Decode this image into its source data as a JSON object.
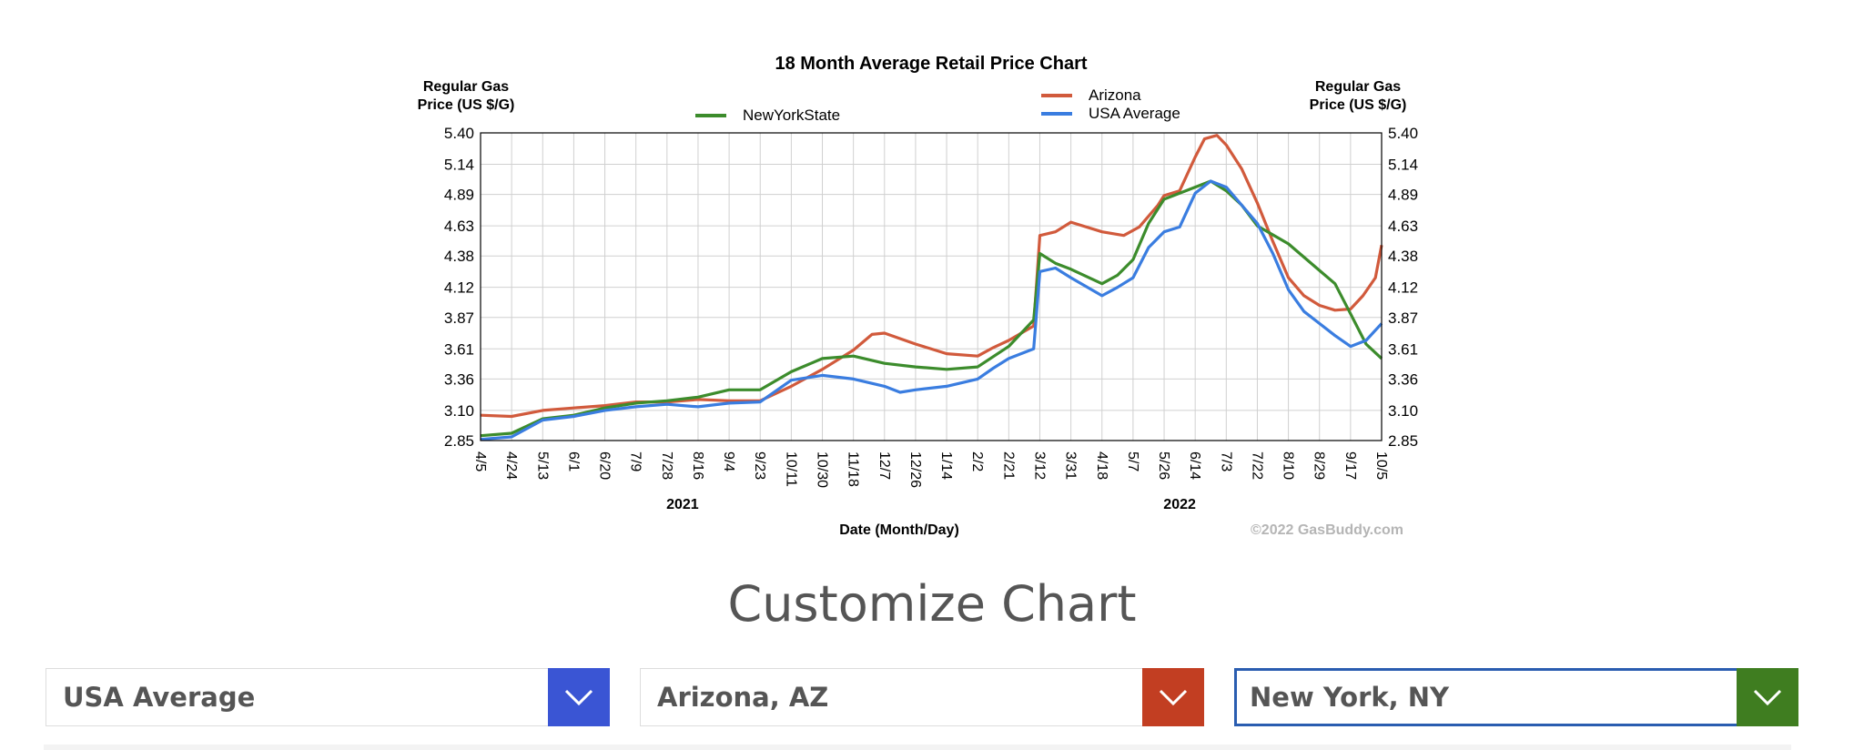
{
  "chart_data": {
    "type": "line",
    "title": "18 Month Average Retail Price Chart",
    "ylabel_left": "Regular Gas Price (US $/G)",
    "ylabel_right": "Regular Gas Price (US $/G)",
    "xlabel": "Date (Month/Day)",
    "credit": "©2022 GasBuddy.com",
    "ylim": [
      2.85,
      5.4
    ],
    "yticks": [
      "2.85",
      "3.10",
      "3.36",
      "3.61",
      "3.87",
      "4.12",
      "4.38",
      "4.63",
      "4.89",
      "5.14",
      "5.40"
    ],
    "x_ticks": [
      "4/5",
      "4/24",
      "5/13",
      "6/1",
      "6/20",
      "7/9",
      "7/28",
      "8/16",
      "9/4",
      "9/23",
      "10/11",
      "10/30",
      "11/18",
      "12/7",
      "12/26",
      "1/14",
      "2/2",
      "2/21",
      "3/12",
      "3/31",
      "4/18",
      "5/7",
      "5/26",
      "6/14",
      "7/3",
      "7/22",
      "8/10",
      "8/29",
      "9/17",
      "10/5"
    ],
    "years": [
      {
        "label": "2021",
        "at_tick": 6.5
      },
      {
        "label": "2022",
        "at_tick": 22.5
      }
    ],
    "grid": true,
    "legend": [
      {
        "name": "NewYorkState",
        "color": "#3c8c2c"
      },
      {
        "name": "Arizona",
        "color": "#d15a3c"
      },
      {
        "name": "USA Average",
        "color": "#3a7de0"
      }
    ],
    "series": [
      {
        "name": "Arizona",
        "color": "#d15a3c",
        "points": [
          [
            0,
            3.06
          ],
          [
            1,
            3.05
          ],
          [
            2,
            3.1
          ],
          [
            3,
            3.12
          ],
          [
            4,
            3.14
          ],
          [
            5,
            3.17
          ],
          [
            6,
            3.17
          ],
          [
            7,
            3.19
          ],
          [
            8,
            3.18
          ],
          [
            9,
            3.18
          ],
          [
            10,
            3.3
          ],
          [
            11,
            3.44
          ],
          [
            12,
            3.6
          ],
          [
            12.6,
            3.73
          ],
          [
            13,
            3.74
          ],
          [
            14,
            3.65
          ],
          [
            15,
            3.57
          ],
          [
            16,
            3.55
          ],
          [
            16.5,
            3.62
          ],
          [
            17,
            3.68
          ],
          [
            17.8,
            3.8
          ],
          [
            18,
            4.55
          ],
          [
            18.5,
            4.58
          ],
          [
            19,
            4.66
          ],
          [
            20,
            4.58
          ],
          [
            20.7,
            4.55
          ],
          [
            21.2,
            4.62
          ],
          [
            21.8,
            4.8
          ],
          [
            22,
            4.88
          ],
          [
            22.5,
            4.92
          ],
          [
            23,
            5.2
          ],
          [
            23.3,
            5.35
          ],
          [
            23.7,
            5.38
          ],
          [
            24,
            5.3
          ],
          [
            24.5,
            5.1
          ],
          [
            25,
            4.82
          ],
          [
            25.5,
            4.5
          ],
          [
            26,
            4.2
          ],
          [
            26.5,
            4.05
          ],
          [
            27,
            3.97
          ],
          [
            27.5,
            3.93
          ],
          [
            28,
            3.94
          ],
          [
            28.4,
            4.05
          ],
          [
            28.8,
            4.2
          ],
          [
            29,
            4.47
          ]
        ]
      },
      {
        "name": "NewYorkState",
        "color": "#3c8c2c",
        "points": [
          [
            0,
            2.89
          ],
          [
            1,
            2.91
          ],
          [
            2,
            3.03
          ],
          [
            3,
            3.06
          ],
          [
            4,
            3.12
          ],
          [
            5,
            3.16
          ],
          [
            6,
            3.18
          ],
          [
            7,
            3.21
          ],
          [
            8,
            3.27
          ],
          [
            9,
            3.27
          ],
          [
            10,
            3.42
          ],
          [
            11,
            3.53
          ],
          [
            12,
            3.55
          ],
          [
            13,
            3.49
          ],
          [
            14,
            3.46
          ],
          [
            15,
            3.44
          ],
          [
            16,
            3.46
          ],
          [
            17,
            3.63
          ],
          [
            17.8,
            3.85
          ],
          [
            18,
            4.4
          ],
          [
            18.5,
            4.32
          ],
          [
            19,
            4.27
          ],
          [
            20,
            4.15
          ],
          [
            20.5,
            4.22
          ],
          [
            21,
            4.35
          ],
          [
            21.5,
            4.65
          ],
          [
            22,
            4.85
          ],
          [
            22.7,
            4.92
          ],
          [
            23,
            4.95
          ],
          [
            23.5,
            5.0
          ],
          [
            24,
            4.92
          ],
          [
            24.5,
            4.8
          ],
          [
            25,
            4.63
          ],
          [
            26,
            4.48
          ],
          [
            27,
            4.26
          ],
          [
            27.5,
            4.15
          ],
          [
            28,
            3.9
          ],
          [
            28.5,
            3.65
          ],
          [
            29,
            3.53
          ]
        ]
      },
      {
        "name": "USA Average",
        "color": "#3a7de0",
        "points": [
          [
            0,
            2.86
          ],
          [
            1,
            2.88
          ],
          [
            2,
            3.02
          ],
          [
            3,
            3.05
          ],
          [
            4,
            3.1
          ],
          [
            5,
            3.13
          ],
          [
            6,
            3.15
          ],
          [
            7,
            3.13
          ],
          [
            8,
            3.16
          ],
          [
            9,
            3.17
          ],
          [
            10,
            3.35
          ],
          [
            11,
            3.39
          ],
          [
            12,
            3.36
          ],
          [
            13,
            3.3
          ],
          [
            13.5,
            3.25
          ],
          [
            14,
            3.27
          ],
          [
            15,
            3.3
          ],
          [
            16,
            3.36
          ],
          [
            16.5,
            3.45
          ],
          [
            17,
            3.53
          ],
          [
            17.8,
            3.61
          ],
          [
            18,
            4.25
          ],
          [
            18.5,
            4.28
          ],
          [
            19,
            4.2
          ],
          [
            20,
            4.05
          ],
          [
            20.5,
            4.12
          ],
          [
            21,
            4.2
          ],
          [
            21.5,
            4.45
          ],
          [
            22,
            4.58
          ],
          [
            22.5,
            4.62
          ],
          [
            23,
            4.9
          ],
          [
            23.5,
            5.0
          ],
          [
            24,
            4.95
          ],
          [
            24.5,
            4.8
          ],
          [
            25,
            4.65
          ],
          [
            25.5,
            4.4
          ],
          [
            26,
            4.1
          ],
          [
            26.5,
            3.92
          ],
          [
            27,
            3.82
          ],
          [
            27.5,
            3.72
          ],
          [
            28,
            3.63
          ],
          [
            28.5,
            3.68
          ],
          [
            29,
            3.82
          ]
        ]
      }
    ]
  },
  "customize": {
    "title": "Customize Chart",
    "selectors": [
      {
        "value": "USA Average",
        "color": "#3a55d4"
      },
      {
        "value": "Arizona, AZ",
        "color": "#c23e22"
      },
      {
        "value": "New York, NY",
        "color": "#3f7d20"
      }
    ]
  }
}
